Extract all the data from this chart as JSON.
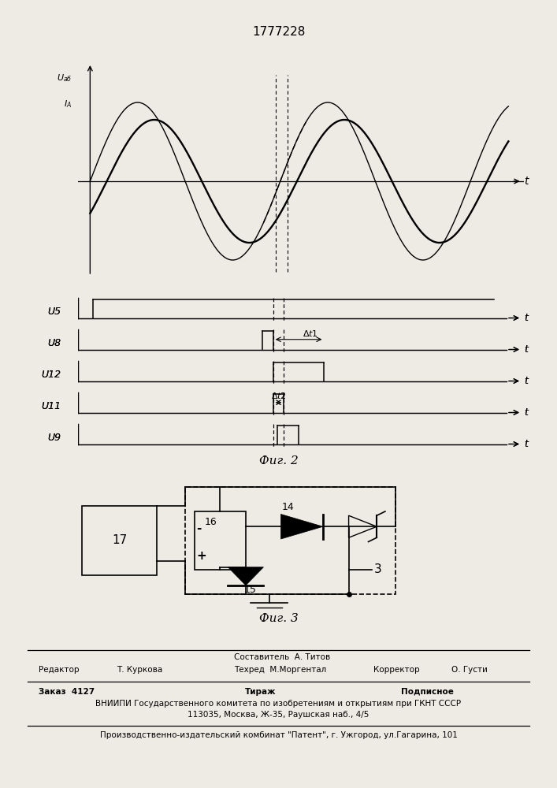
{
  "patent_number": "1777228",
  "fig2_caption": "Фиг. 2",
  "fig3_caption": "Фиг. 3",
  "background_color": "#eeebe4",
  "signal_labels": [
    "U5",
    "U8",
    "U12",
    "U11",
    "U9"
  ],
  "footer_editor_label": "Редактор",
  "footer_editor_name": "Т. Куркова",
  "footer_composer": "Составитель  А. Титов",
  "footer_techred": "Техред  М.Моргентал",
  "footer_corrector_label": "Корректор",
  "footer_corrector_name": "О. Густи",
  "footer_order": "Заказ  4127",
  "footer_tirazh": "Тираж",
  "footer_podpisnoe": "Подписное",
  "footer_vniip1": "ВНИИПИ Государственного комитета по изобретениям и открытиям при ГКНТ СССР",
  "footer_vniip2": "113035, Москва, Ж-35, Раушская наб., 4/5",
  "footer_patent": "Производственно-издательский комбинат \"Патент\", г. Ужгород, ул.Гагарина, 101"
}
